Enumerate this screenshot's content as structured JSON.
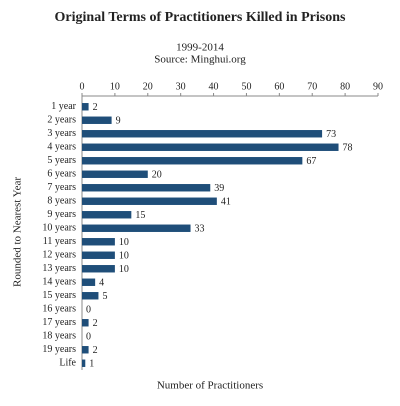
{
  "chart_data": {
    "type": "bar",
    "orientation": "horizontal",
    "title": "Original Terms of Practitioners Killed in Prisons",
    "subtitle": "1999-2014",
    "source": "Source: Minghui.org",
    "x_label": "Number of Practitioners",
    "y_label": "Rounded to Nearest Year",
    "categories": [
      "1 year",
      "2 years",
      "3 years",
      "4 years",
      "5 years",
      "6 years",
      "7 years",
      "8 years",
      "9 years",
      "10 years",
      "11 years",
      "12 years",
      "13 years",
      "14 years",
      "15 years",
      "16 years",
      "17 years",
      "18 years",
      "19 years",
      "Life"
    ],
    "values": [
      2,
      9,
      73,
      78,
      67,
      20,
      39,
      41,
      15,
      33,
      10,
      10,
      10,
      4,
      5,
      0,
      2,
      0,
      2,
      1
    ],
    "color": "#1f4e79",
    "xlim": [
      0,
      90
    ],
    "xticks": [
      0,
      10,
      20,
      30,
      40,
      50,
      60,
      70,
      80,
      90
    ],
    "grid": false
  }
}
